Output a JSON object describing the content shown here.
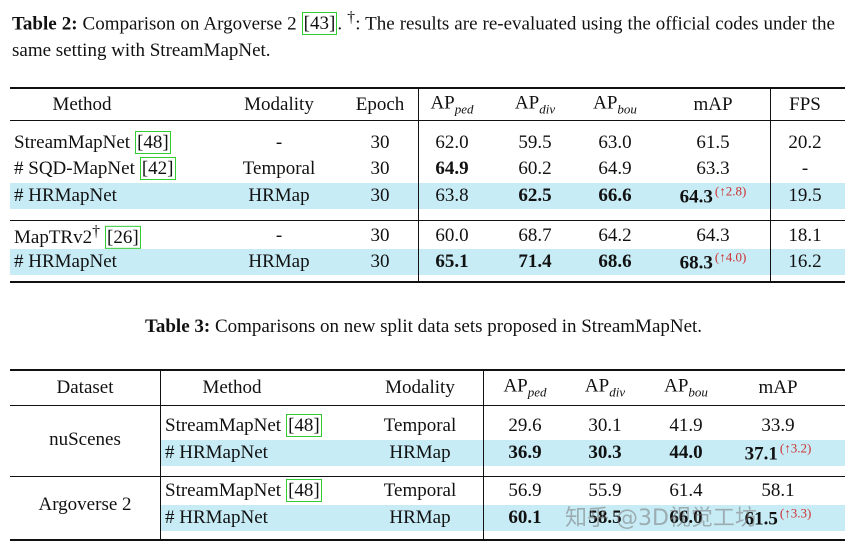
{
  "table2": {
    "caption": {
      "label": "Table 2:",
      "parts": [
        {
          "text": "Comparison on Argoverse 2 "
        },
        {
          "cite": "[43]"
        },
        {
          "text": ". "
        },
        {
          "sup": "†"
        },
        {
          "text": ": The results are re-evaluated using the official codes under the same setting with StreamMapNet."
        }
      ]
    },
    "header": [
      {
        "text": "Method"
      },
      {
        "text": "Modality"
      },
      {
        "text": "Epoch"
      },
      {
        "text": "AP",
        "sub": "ped"
      },
      {
        "text": "AP",
        "sub": "div"
      },
      {
        "text": "AP",
        "sub": "bou"
      },
      {
        "text": "mAP"
      },
      {
        "text": "FPS"
      }
    ],
    "rows": [
      [
        {
          "text": "StreamMapNet",
          "cite": "[48]"
        },
        "-",
        "30",
        "62.0",
        "59.5",
        "63.0",
        "61.5",
        "20.2"
      ],
      [
        {
          "text": "# SQD-MapNet",
          "cite": "[42]"
        },
        "Temporal",
        "30",
        {
          "text": "64.9",
          "bold": true
        },
        "60.2",
        "64.9",
        "63.3",
        "-"
      ],
      [
        {
          "text": "# HRMapNet"
        },
        "HRMap",
        "30",
        "63.8",
        {
          "text": "62.5",
          "bold": true
        },
        {
          "text": "66.6",
          "bold": true
        },
        {
          "text": "64.3",
          "bold": true,
          "gain": "(↑2.8)"
        },
        "19.5"
      ],
      [
        {
          "text": "MapTRv2",
          "sup": "†",
          "cite": "[26]"
        },
        "-",
        "30",
        "60.0",
        "68.7",
        "64.2",
        "64.3",
        "18.1"
      ],
      [
        {
          "text": "# HRMapNet"
        },
        "HRMap",
        "30",
        {
          "text": "65.1",
          "bold": true
        },
        {
          "text": "71.4",
          "bold": true
        },
        {
          "text": "68.6",
          "bold": true
        },
        {
          "text": "68.3",
          "bold": true,
          "gain": "(↑4.0)"
        },
        "16.2"
      ]
    ],
    "highlight_rows": [
      2,
      4
    ]
  },
  "table3": {
    "caption": {
      "label": "Table 3:",
      "parts": [
        {
          "text": "Comparisons on new split data sets proposed in StreamMapNet."
        }
      ]
    },
    "header": [
      {
        "text": "Dataset"
      },
      {
        "text": "Method"
      },
      {
        "text": "Modality"
      },
      {
        "text": "AP",
        "sub": "ped"
      },
      {
        "text": "AP",
        "sub": "div"
      },
      {
        "text": "AP",
        "sub": "bou"
      },
      {
        "text": "mAP"
      }
    ],
    "groups": [
      {
        "dataset": "nuScenes",
        "rows": [
          [
            {
              "text": "StreamMapNet",
              "cite": "[48]"
            },
            "Temporal",
            "29.6",
            "30.1",
            "41.9",
            "33.9"
          ],
          [
            {
              "text": "# HRMapNet"
            },
            "HRMap",
            {
              "text": "36.9",
              "bold": true
            },
            {
              "text": "30.3",
              "bold": true
            },
            {
              "text": "44.0",
              "bold": true
            },
            {
              "text": "37.1",
              "bold": true,
              "gain": "(↑3.2)"
            }
          ]
        ]
      },
      {
        "dataset": "Argoverse 2",
        "rows": [
          [
            {
              "text": "StreamMapNet",
              "cite": "[48]"
            },
            "Temporal",
            "56.9",
            "55.9",
            "61.4",
            "58.1"
          ],
          [
            {
              "text": "# HRMapNet"
            },
            "HRMap",
            {
              "text": "60.1",
              "bold": true
            },
            {
              "text": "58.5",
              "bold": true
            },
            {
              "text": "66.0",
              "bold": true
            },
            {
              "text": "61.5",
              "bold": true,
              "gain": "(↑3.3)"
            }
          ]
        ]
      }
    ]
  },
  "watermark": "知乎 @3D视觉工坊"
}
